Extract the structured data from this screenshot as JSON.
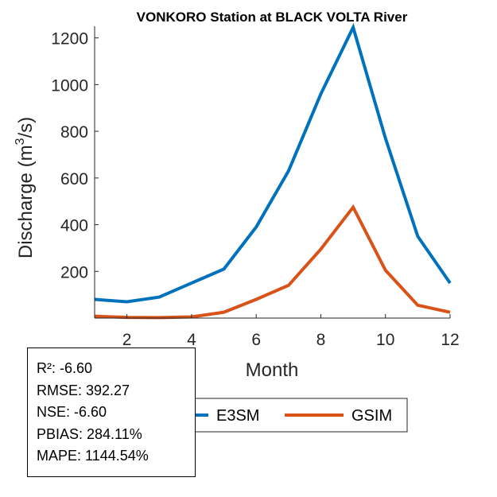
{
  "chart_data": {
    "type": "line",
    "title": "VONKORO  Station at  BLACK VOLTA  River",
    "xlabel": "Month",
    "ylabel": "Discharge (m³/s)",
    "ylabel_parts": {
      "prefix": "Discharge (m",
      "superscript": "3",
      "suffix": "/s)"
    },
    "xlim": [
      1,
      12
    ],
    "ylim": [
      0,
      1250
    ],
    "xticks": [
      2,
      4,
      6,
      8,
      10,
      12
    ],
    "yticks": [
      200,
      400,
      600,
      800,
      1000,
      1200
    ],
    "grid": false,
    "legend_position": "bottom-center",
    "x": [
      1,
      2,
      3,
      4,
      5,
      6,
      7,
      8,
      9,
      10,
      11,
      12
    ],
    "series": [
      {
        "name": "E3SM",
        "color": "#0072BD",
        "values": [
          80,
          70,
          90,
          150,
          210,
          390,
          630,
          960,
          1245,
          770,
          350,
          150
        ]
      },
      {
        "name": "GSIM",
        "color": "#D95319",
        "values": [
          8,
          3,
          2,
          5,
          25,
          80,
          140,
          295,
          475,
          205,
          55,
          25
        ]
      }
    ]
  },
  "stats": {
    "r2": "R²: -6.60",
    "rmse": "RMSE: 392.27",
    "nse": "NSE: -6.60",
    "pbias": "PBIAS: 284.11%",
    "mape": "MAPE: 1144.54%"
  }
}
